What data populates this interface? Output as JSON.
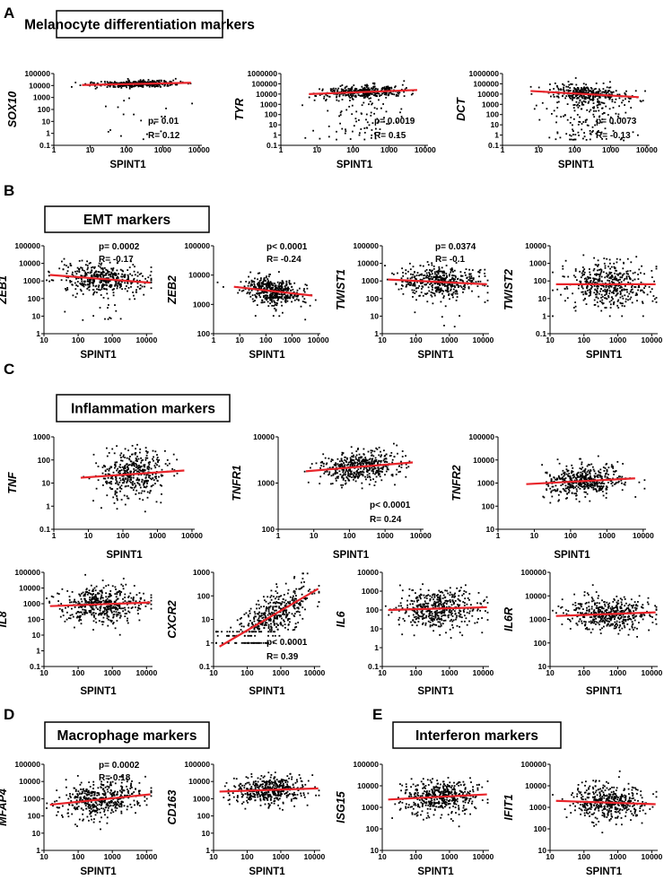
{
  "panels": [
    {
      "letter": "A",
      "title": "Melanocyte differentiation markers"
    },
    {
      "letter": "B",
      "title": "EMT markers"
    },
    {
      "letter": "C",
      "title": "Inflammation markers"
    },
    {
      "letter": "D",
      "title": "Macrophage markers"
    },
    {
      "letter": "E",
      "title": "Interferon markers"
    }
  ],
  "chart_data": [
    {
      "id": "SOX10",
      "panel": "A",
      "type": "scatter",
      "xlabel": "SPINT1",
      "ylabel": "SOX10",
      "xscale": "log",
      "yscale": "log",
      "xlim": [
        1,
        12000
      ],
      "ylim": [
        0.1,
        100000
      ],
      "x_ticks": [
        "1",
        "10",
        "100",
        "1000",
        "10000"
      ],
      "y_ticks": [
        "0.1",
        "1",
        "10",
        "100",
        "1000",
        "10000",
        "100000"
      ],
      "fit_line": [
        [
          6,
          11000
        ],
        [
          6000,
          17000
        ]
      ],
      "fit_color": "#e8242a",
      "stats": {
        "p": "p= 0.01",
        "R": "R= 0.12",
        "placement": "bottom-right"
      },
      "cloud": {
        "n": 420,
        "x_median": 200,
        "x_spread_decades": 0.55,
        "y_spread_decades": 0.13,
        "outlier_fraction": 0.05,
        "outlier_y_range": [
          0.3,
          1000
        ]
      }
    },
    {
      "id": "TYR",
      "panel": "A",
      "type": "scatter",
      "xlabel": "SPINT1",
      "ylabel": "TYR",
      "xscale": "log",
      "yscale": "log",
      "xlim": [
        1,
        12000
      ],
      "ylim": [
        0.1,
        1000000
      ],
      "x_ticks": [
        "1",
        "10",
        "100",
        "1000",
        "10000"
      ],
      "y_ticks": [
        "0.1",
        "1",
        "10",
        "100",
        "1000",
        "10000",
        "100000",
        "1000000"
      ],
      "fit_line": [
        [
          6,
          10000
        ],
        [
          6000,
          25000
        ]
      ],
      "fit_color": "#e8242a",
      "stats": {
        "p": "p= 0.0019",
        "R": "R= 0.15",
        "placement": "bottom-right"
      },
      "cloud": {
        "n": 460,
        "x_median": 200,
        "x_spread_decades": 0.55,
        "y_spread_decades": 0.3,
        "outlier_fraction": 0.14,
        "outlier_y_range": [
          0.3,
          3000
        ]
      }
    },
    {
      "id": "DCT",
      "panel": "A",
      "type": "scatter",
      "xlabel": "SPINT1",
      "ylabel": "DCT",
      "xscale": "log",
      "yscale": "log",
      "xlim": [
        1,
        12000
      ],
      "ylim": [
        0.1,
        1000000
      ],
      "x_ticks": [
        "1",
        "10",
        "100",
        "1000",
        "10000"
      ],
      "y_ticks": [
        "0.1",
        "1",
        "10",
        "100",
        "1000",
        "10000",
        "100000",
        "1000000"
      ],
      "fit_line": [
        [
          6,
          20000
        ],
        [
          6000,
          5000
        ]
      ],
      "fit_color": "#e8242a",
      "stats": {
        "p": "p= 0.0073",
        "R": "R= -0.13",
        "placement": "bottom-right"
      },
      "cloud": {
        "n": 460,
        "x_median": 200,
        "x_spread_decades": 0.55,
        "y_spread_decades": 0.45,
        "outlier_fraction": 0.3,
        "outlier_y_range": [
          0.3,
          3000
        ]
      }
    },
    {
      "id": "ZEB1",
      "panel": "B",
      "type": "scatter",
      "xlabel": "SPINT1",
      "ylabel": "ZEB1",
      "xscale": "log",
      "yscale": "log",
      "xlim": [
        10,
        15000
      ],
      "ylim": [
        1,
        100000
      ],
      "x_ticks": [
        "10",
        "100",
        "1000",
        "10000"
      ],
      "y_ticks": [
        "1",
        "10",
        "100",
        "1000",
        "10000",
        "100000"
      ],
      "fit_line": [
        [
          15,
          2200
        ],
        [
          13000,
          800
        ]
      ],
      "fit_color": "#e8242a",
      "stats": {
        "p": "p= 0.0002",
        "R": "R= -0.17",
        "placement": "top-right"
      },
      "cloud": {
        "n": 460,
        "x_median": 500,
        "x_spread_decades": 0.6,
        "y_spread_decades": 0.45,
        "outlier_fraction": 0.02,
        "outlier_y_range": [
          5,
          50
        ]
      }
    },
    {
      "id": "ZEB2",
      "panel": "B",
      "type": "scatter",
      "xlabel": "SPINT1",
      "ylabel": "ZEB2",
      "xscale": "log",
      "yscale": "log",
      "xlim": [
        1,
        12000
      ],
      "ylim": [
        100,
        100000
      ],
      "x_ticks": [
        "1",
        "10",
        "100",
        "1000",
        "10000"
      ],
      "y_ticks": [
        "100",
        "1000",
        "10000",
        "100000"
      ],
      "fit_line": [
        [
          6,
          4000
        ],
        [
          6000,
          2000
        ]
      ],
      "fit_color": "#e8242a",
      "stats": {
        "p": "p< 0.0001",
        "R": "R= -0.24",
        "placement": "top-right"
      },
      "cloud": {
        "n": 460,
        "x_median": 200,
        "x_spread_decades": 0.55,
        "y_spread_decades": 0.2,
        "outlier_fraction": 0.02,
        "outlier_y_range": [
          300,
          800
        ]
      }
    },
    {
      "id": "TWIST1",
      "panel": "B",
      "type": "scatter",
      "xlabel": "SPINT1",
      "ylabel": "TWIST1",
      "xscale": "log",
      "yscale": "log",
      "xlim": [
        10,
        15000
      ],
      "ylim": [
        1,
        100000
      ],
      "x_ticks": [
        "10",
        "100",
        "1000",
        "10000"
      ],
      "y_ticks": [
        "1",
        "10",
        "100",
        "1000",
        "10000",
        "100000"
      ],
      "fit_line": [
        [
          15,
          1200
        ],
        [
          13000,
          650
        ]
      ],
      "fit_color": "#e8242a",
      "stats": {
        "p": "p= 0.0374",
        "R": "R= -0.1",
        "placement": "top-right"
      },
      "cloud": {
        "n": 460,
        "x_median": 500,
        "x_spread_decades": 0.6,
        "y_spread_decades": 0.45,
        "outlier_fraction": 0.02,
        "outlier_y_range": [
          2,
          20
        ]
      }
    },
    {
      "id": "TWIST2",
      "panel": "B",
      "type": "scatter",
      "xlabel": "SPINT1",
      "ylabel": "TWIST2",
      "xscale": "log",
      "yscale": "log",
      "xlim": [
        10,
        15000
      ],
      "ylim": [
        0.1,
        10000
      ],
      "x_ticks": [
        "10",
        "100",
        "1000",
        "10000"
      ],
      "y_ticks": [
        "0.1",
        "1",
        "10",
        "100",
        "1000",
        "10000"
      ],
      "fit_line": [
        [
          15,
          65
        ],
        [
          13000,
          65
        ]
      ],
      "fit_color": "#e8242a",
      "stats": null,
      "cloud": {
        "n": 460,
        "x_median": 500,
        "x_spread_decades": 0.6,
        "y_spread_decades": 0.65,
        "outlier_fraction": 0,
        "floor_values": [
          1,
          2,
          3
        ]
      }
    },
    {
      "id": "TNF",
      "panel": "C",
      "type": "scatter",
      "xlabel": "SPINT1",
      "ylabel": "TNF",
      "xscale": "log",
      "yscale": "log",
      "xlim": [
        1,
        12000
      ],
      "ylim": [
        0.1,
        1000
      ],
      "x_ticks": [
        "1",
        "10",
        "100",
        "1000",
        "10000"
      ],
      "y_ticks": [
        "0.1",
        "1",
        "10",
        "100",
        "1000"
      ],
      "fit_line": [
        [
          6,
          17
        ],
        [
          6000,
          35
        ]
      ],
      "fit_color": "#e8242a",
      "stats": null,
      "cloud": {
        "n": 420,
        "x_median": 200,
        "x_spread_decades": 0.5,
        "y_spread_decades": 0.5,
        "outlier_fraction": 0
      }
    },
    {
      "id": "TNFR1",
      "panel": "C",
      "type": "scatter",
      "xlabel": "SPINT1",
      "ylabel": "TNFR1",
      "xscale": "log",
      "yscale": "log",
      "xlim": [
        1,
        12000
      ],
      "ylim": [
        100,
        10000
      ],
      "x_ticks": [
        "1",
        "10",
        "100",
        "1000",
        "10000"
      ],
      "y_ticks": [
        "100",
        "1000",
        "10000"
      ],
      "fit_line": [
        [
          6,
          1800
        ],
        [
          6000,
          2800
        ]
      ],
      "fit_color": "#e8242a",
      "stats": {
        "p": "p< 0.0001",
        "R": "R= 0.24",
        "placement": "bottom-right"
      },
      "cloud": {
        "n": 460,
        "x_median": 200,
        "x_spread_decades": 0.55,
        "y_spread_decades": 0.17,
        "outlier_fraction": 0
      }
    },
    {
      "id": "TNFR2",
      "panel": "C",
      "type": "scatter",
      "xlabel": "SPINT1",
      "ylabel": "TNFR2",
      "xscale": "log",
      "yscale": "log",
      "xlim": [
        1,
        12000
      ],
      "ylim": [
        10,
        100000
      ],
      "x_ticks": [
        "1",
        "10",
        "100",
        "1000",
        "10000"
      ],
      "y_ticks": [
        "10",
        "100",
        "1000",
        "10000",
        "100000"
      ],
      "fit_line": [
        [
          6,
          900
        ],
        [
          6000,
          1600
        ]
      ],
      "fit_color": "#e8242a",
      "stats": null,
      "cloud": {
        "n": 460,
        "x_median": 250,
        "x_spread_decades": 0.5,
        "y_spread_decades": 0.32,
        "outlier_fraction": 0
      }
    },
    {
      "id": "IL8",
      "panel": "C",
      "type": "scatter",
      "xlabel": "SPINT1",
      "ylabel": "IL8",
      "xscale": "log",
      "yscale": "log",
      "xlim": [
        10,
        15000
      ],
      "ylim": [
        0.1,
        100000
      ],
      "x_ticks": [
        "10",
        "100",
        "1000",
        "10000"
      ],
      "y_ticks": [
        "0.1",
        "1",
        "10",
        "100",
        "1000",
        "10000",
        "100000"
      ],
      "fit_line": [
        [
          15,
          700
        ],
        [
          13000,
          1200
        ]
      ],
      "fit_color": "#e8242a",
      "stats": null,
      "cloud": {
        "n": 460,
        "x_median": 500,
        "x_spread_decades": 0.6,
        "y_spread_decades": 0.55,
        "outlier_fraction": 0
      }
    },
    {
      "id": "CXCR2",
      "panel": "C",
      "type": "scatter",
      "xlabel": "SPINT1",
      "ylabel": "CXCR2",
      "xscale": "log",
      "yscale": "log",
      "xlim": [
        10,
        15000
      ],
      "ylim": [
        0.1,
        1000
      ],
      "x_ticks": [
        "10",
        "100",
        "1000",
        "10000"
      ],
      "y_ticks": [
        "0.1",
        "1",
        "10",
        "100",
        "1000"
      ],
      "fit_line": [
        [
          15,
          0.7
        ],
        [
          13000,
          200
        ]
      ],
      "fit_color": "#e8242a",
      "stats": {
        "p": "p< 0.0001",
        "R": "R= 0.39",
        "placement": "bottom-right"
      },
      "cloud": {
        "n": 460,
        "x_median": 500,
        "x_spread_decades": 0.6,
        "y_spread_decades": 0.45,
        "outlier_fraction": 0,
        "floor_values": [
          1,
          2,
          3
        ]
      }
    },
    {
      "id": "IL6",
      "panel": "C",
      "type": "scatter",
      "xlabel": "SPINT1",
      "ylabel": "IL6",
      "xscale": "log",
      "yscale": "log",
      "xlim": [
        10,
        15000
      ],
      "ylim": [
        0.1,
        10000
      ],
      "x_ticks": [
        "10",
        "100",
        "1000",
        "10000"
      ],
      "y_ticks": [
        "0.1",
        "1",
        "10",
        "100",
        "1000",
        "10000"
      ],
      "fit_line": [
        [
          15,
          100
        ],
        [
          13000,
          140
        ]
      ],
      "fit_color": "#e8242a",
      "stats": null,
      "cloud": {
        "n": 460,
        "x_median": 500,
        "x_spread_decades": 0.6,
        "y_spread_decades": 0.5,
        "outlier_fraction": 0
      }
    },
    {
      "id": "IL6R",
      "panel": "C",
      "type": "scatter",
      "xlabel": "SPINT1",
      "ylabel": "IL6R",
      "xscale": "log",
      "yscale": "log",
      "xlim": [
        10,
        15000
      ],
      "ylim": [
        10,
        100000
      ],
      "x_ticks": [
        "10",
        "100",
        "1000",
        "10000"
      ],
      "y_ticks": [
        "10",
        "100",
        "1000",
        "10000",
        "100000"
      ],
      "fit_line": [
        [
          15,
          1400
        ],
        [
          13000,
          2000
        ]
      ],
      "fit_color": "#e8242a",
      "stats": null,
      "cloud": {
        "n": 460,
        "x_median": 500,
        "x_spread_decades": 0.6,
        "y_spread_decades": 0.35,
        "outlier_fraction": 0
      }
    },
    {
      "id": "MFAP4",
      "panel": "D",
      "type": "scatter",
      "xlabel": "SPINT1",
      "ylabel": "MFAP4",
      "xscale": "log",
      "yscale": "log",
      "xlim": [
        10,
        15000
      ],
      "ylim": [
        1,
        100000
      ],
      "x_ticks": [
        "10",
        "100",
        "1000",
        "10000"
      ],
      "y_ticks": [
        "1",
        "10",
        "100",
        "1000",
        "10000",
        "100000"
      ],
      "fit_line": [
        [
          15,
          450
        ],
        [
          13000,
          1800
        ]
      ],
      "fit_color": "#e8242a",
      "stats": {
        "p": "p= 0.0002",
        "R": "R= 0.18",
        "placement": "top-right"
      },
      "cloud": {
        "n": 460,
        "x_median": 500,
        "x_spread_decades": 0.6,
        "y_spread_decades": 0.5,
        "outlier_fraction": 0
      }
    },
    {
      "id": "CD163",
      "panel": "D",
      "type": "scatter",
      "xlabel": "SPINT1",
      "ylabel": "CD163",
      "xscale": "log",
      "yscale": "log",
      "xlim": [
        10,
        15000
      ],
      "ylim": [
        1,
        100000
      ],
      "x_ticks": [
        "10",
        "100",
        "1000",
        "10000"
      ],
      "y_ticks": [
        "1",
        "10",
        "100",
        "1000",
        "10000",
        "100000"
      ],
      "fit_line": [
        [
          15,
          2600
        ],
        [
          13000,
          4000
        ]
      ],
      "fit_color": "#e8242a",
      "stats": null,
      "cloud": {
        "n": 460,
        "x_median": 500,
        "x_spread_decades": 0.55,
        "y_spread_decades": 0.4,
        "outlier_fraction": 0
      }
    },
    {
      "id": "ISG15",
      "panel": "E",
      "type": "scatter",
      "xlabel": "SPINT1",
      "ylabel": "ISG15",
      "xscale": "log",
      "yscale": "log",
      "xlim": [
        10,
        15000
      ],
      "ylim": [
        10,
        100000
      ],
      "x_ticks": [
        "10",
        "100",
        "1000",
        "10000"
      ],
      "y_ticks": [
        "10",
        "100",
        "1000",
        "10000",
        "100000"
      ],
      "fit_line": [
        [
          15,
          2300
        ],
        [
          13000,
          4000
        ]
      ],
      "fit_color": "#e8242a",
      "stats": null,
      "cloud": {
        "n": 460,
        "x_median": 500,
        "x_spread_decades": 0.55,
        "y_spread_decades": 0.4,
        "outlier_fraction": 0
      }
    },
    {
      "id": "IFIT1",
      "panel": "E",
      "type": "scatter",
      "xlabel": "SPINT1",
      "ylabel": "IFIT1",
      "xscale": "log",
      "yscale": "log",
      "xlim": [
        10,
        15000
      ],
      "ylim": [
        10,
        100000
      ],
      "x_ticks": [
        "10",
        "100",
        "1000",
        "10000"
      ],
      "y_ticks": [
        "10",
        "100",
        "1000",
        "10000",
        "100000"
      ],
      "fit_line": [
        [
          15,
          2000
        ],
        [
          13000,
          1400
        ]
      ],
      "fit_color": "#e8242a",
      "stats": null,
      "cloud": {
        "n": 460,
        "x_median": 500,
        "x_spread_decades": 0.55,
        "y_spread_decades": 0.4,
        "outlier_fraction": 0
      }
    }
  ]
}
